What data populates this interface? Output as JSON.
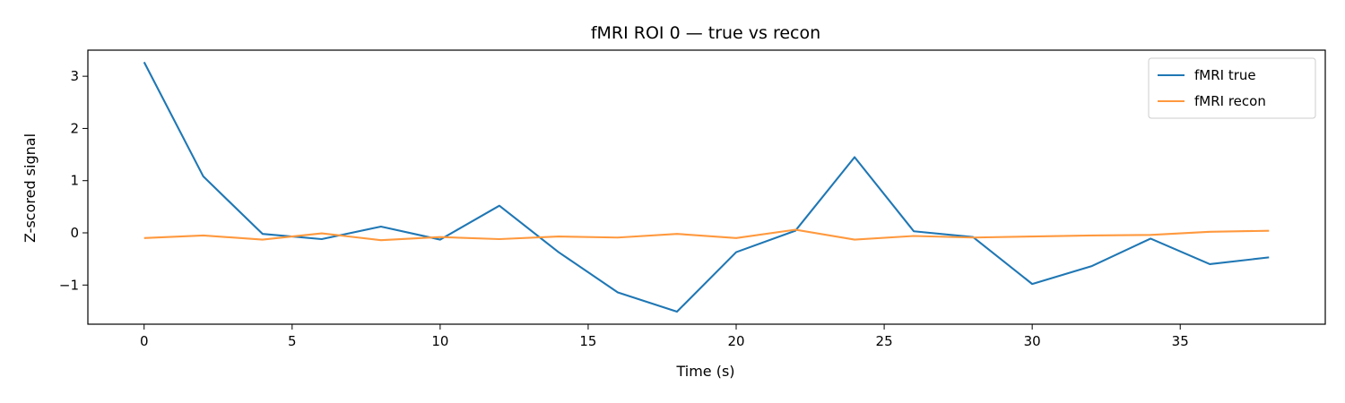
{
  "chart_data": {
    "type": "line",
    "title": "fMRI ROI 0 — true vs recon",
    "xlabel": "Time (s)",
    "ylabel": "Z-scored signal",
    "xlim": [
      -1.9,
      39.9
    ],
    "ylim": [
      -1.75,
      3.5
    ],
    "xticks": [
      0,
      5,
      10,
      15,
      20,
      25,
      30,
      35
    ],
    "yticks": [
      -1,
      0,
      1,
      2,
      3
    ],
    "grid": false,
    "legend_position": "top-right",
    "x": [
      0,
      2,
      4,
      6,
      8,
      10,
      12,
      14,
      16,
      18,
      20,
      22,
      24,
      26,
      28,
      30,
      32,
      34,
      36,
      38
    ],
    "series": [
      {
        "name": "fMRI true",
        "color": "#1f77b4",
        "values": [
          3.27,
          1.08,
          -0.02,
          -0.12,
          0.12,
          -0.13,
          0.52,
          -0.37,
          -1.14,
          -1.51,
          -0.37,
          0.04,
          1.45,
          0.03,
          -0.08,
          -0.98,
          -0.64,
          -0.11,
          -0.6,
          -0.47
        ]
      },
      {
        "name": "fMRI recon",
        "color": "#ff993e",
        "values": [
          -0.1,
          -0.05,
          -0.13,
          -0.01,
          -0.14,
          -0.08,
          -0.12,
          -0.07,
          -0.09,
          -0.02,
          -0.1,
          0.06,
          -0.13,
          -0.06,
          -0.09,
          -0.07,
          -0.05,
          -0.04,
          0.02,
          0.04
        ]
      }
    ]
  }
}
